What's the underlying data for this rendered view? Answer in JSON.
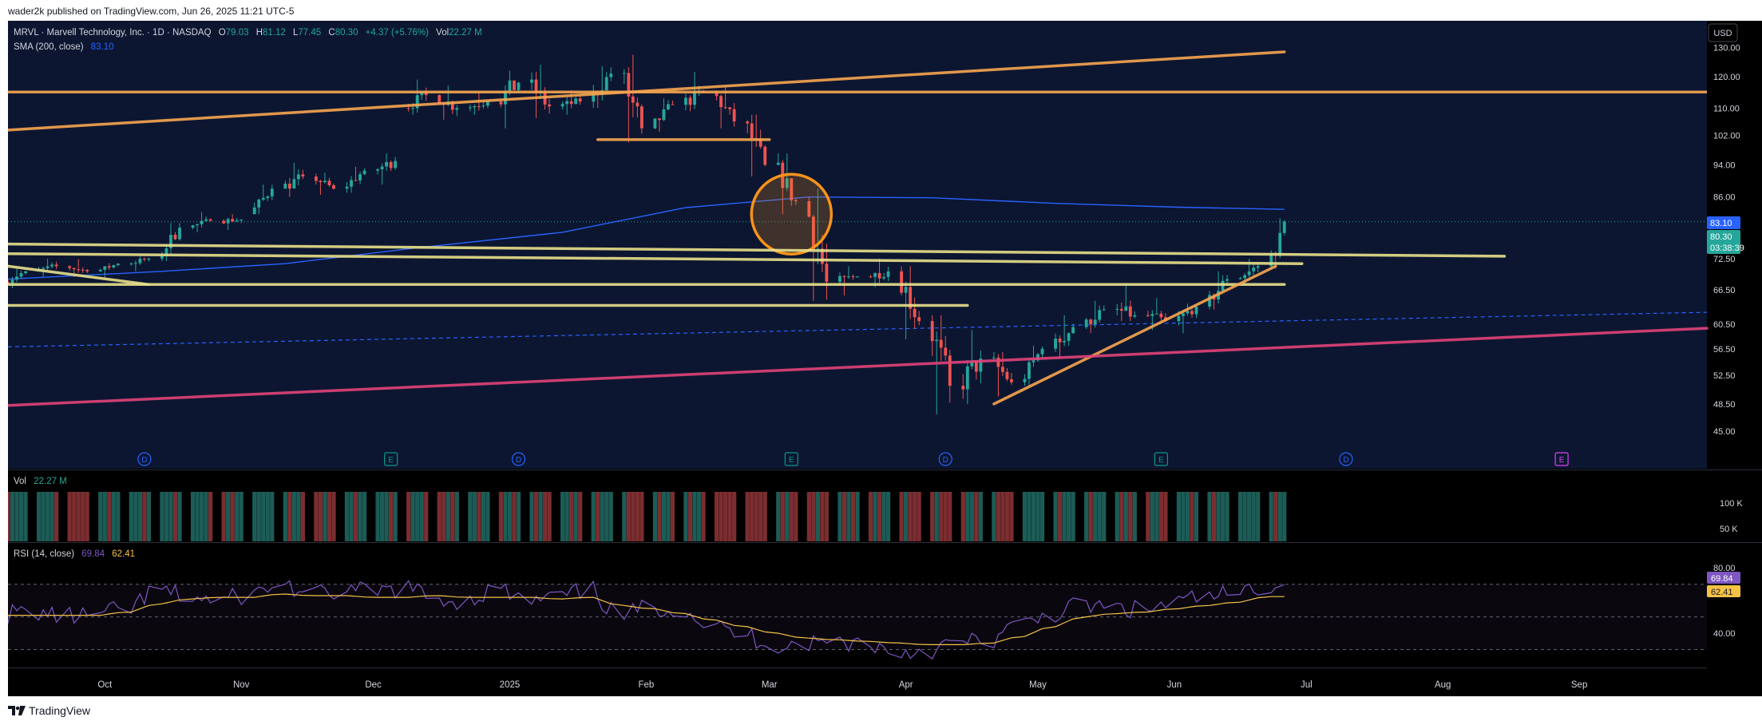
{
  "header": {
    "published": "wader2k published on TradingView.com, Jun 26, 2025 11:21 UTC-5"
  },
  "legend": {
    "symbol": "MRVL · Marvell Technology, Inc. · 1D · NASDAQ",
    "o_label": "O",
    "o_value": "79.03",
    "h_label": "H",
    "h_value": "81.12",
    "l_label": "L",
    "l_value": "77.45",
    "c_label": "C",
    "c_value": "80.30",
    "change": "+4.37 (+5.76%)",
    "vol_label": "Vol",
    "vol_value": "22.27 M",
    "sma_label": "SMA (200, close)",
    "sma_value": "83.10"
  },
  "currency": "USD",
  "price_axis": [
    "130.00",
    "120.00",
    "110.00",
    "102.00",
    "94.00",
    "86.00",
    "72.50",
    "66.50",
    "60.50",
    "56.50",
    "52.50",
    "48.50",
    "45.00"
  ],
  "price_tags": {
    "sma": "83.10",
    "last": "80.30",
    "countdown": "03:38:39"
  },
  "events": [
    {
      "letter": "D",
      "color": "#2962ff"
    },
    {
      "letter": "E",
      "color": "#089981"
    },
    {
      "letter": "D",
      "color": "#2962ff"
    },
    {
      "letter": "E",
      "color": "#089981"
    },
    {
      "letter": "D",
      "color": "#2962ff"
    },
    {
      "letter": "E",
      "color": "#089981"
    },
    {
      "letter": "D",
      "color": "#2962ff"
    },
    {
      "letter": "E",
      "color": "#e040fb"
    }
  ],
  "volume_pane": {
    "label": "Vol",
    "value": "22.27 M",
    "axis": [
      "100 K",
      "50 K"
    ]
  },
  "rsi_pane": {
    "label": "RSI (14, close)",
    "rsi_value": "69.84",
    "ma_value": "62.41",
    "axis": [
      "80.00",
      "40.00"
    ],
    "tags": [
      "69.84",
      "62.41"
    ]
  },
  "time_axis": [
    "Oct",
    "Nov",
    "Dec",
    "2025",
    "Feb",
    "Mar",
    "Apr",
    "May",
    "Jun",
    "Jul",
    "Aug",
    "Sep"
  ],
  "footer": {
    "brand": "TradingView"
  },
  "colors": {
    "up": "#26a69a",
    "down": "#ef5350",
    "background": "#0c1631",
    "sma": "#2962ff",
    "rsi": "#7e57c2",
    "rsi_ma": "#f5c246",
    "trend_orange": "#f7a64f",
    "trend_yellow": "#e8e08a",
    "trend_pink": "#e2437a",
    "circle": "#f7931a"
  },
  "chart_data": {
    "type": "candlestick",
    "symbol": "MRVL",
    "interval": "1D",
    "x_range": [
      "2024-09-09",
      "2025-09-30"
    ],
    "ylim": [
      42,
      134
    ],
    "grid": false,
    "price_scale": "log",
    "ohlc_weekly_approx": [
      {
        "date": "2024-09-09",
        "o": 68.0,
        "h": 70.5,
        "l": 66.8,
        "c": 70.0
      },
      {
        "date": "2024-09-16",
        "o": 70.0,
        "h": 72.5,
        "l": 69.0,
        "c": 71.0
      },
      {
        "date": "2024-09-23",
        "o": 71.0,
        "h": 72.4,
        "l": 68.9,
        "c": 70.0
      },
      {
        "date": "2024-09-30",
        "o": 70.0,
        "h": 71.6,
        "l": 68.8,
        "c": 71.5
      },
      {
        "date": "2024-10-07",
        "o": 71.5,
        "h": 73.0,
        "l": 70.0,
        "c": 72.5
      },
      {
        "date": "2024-10-14",
        "o": 72.5,
        "h": 80.0,
        "l": 72.0,
        "c": 79.0
      },
      {
        "date": "2024-10-21",
        "o": 79.0,
        "h": 82.5,
        "l": 78.0,
        "c": 80.5
      },
      {
        "date": "2024-10-28",
        "o": 80.5,
        "h": 82.0,
        "l": 78.5,
        "c": 80.8
      },
      {
        "date": "2024-11-04",
        "o": 82.0,
        "h": 89.0,
        "l": 82.0,
        "c": 88.0
      },
      {
        "date": "2024-11-11",
        "o": 88.0,
        "h": 94.5,
        "l": 86.0,
        "c": 91.0
      },
      {
        "date": "2024-11-18",
        "o": 91.0,
        "h": 92.0,
        "l": 86.5,
        "c": 88.0
      },
      {
        "date": "2024-11-25",
        "o": 88.0,
        "h": 93.5,
        "l": 87.0,
        "c": 92.5
      },
      {
        "date": "2024-12-02",
        "o": 92.5,
        "h": 97.0,
        "l": 89.0,
        "c": 95.0
      },
      {
        "date": "2024-12-09",
        "o": 110.0,
        "h": 119.0,
        "l": 108.0,
        "c": 114.0
      },
      {
        "date": "2024-12-16",
        "o": 114.0,
        "h": 117.0,
        "l": 106.5,
        "c": 110.0
      },
      {
        "date": "2024-12-23",
        "o": 110.0,
        "h": 115.0,
        "l": 108.0,
        "c": 112.0
      },
      {
        "date": "2024-12-30",
        "o": 112.0,
        "h": 122.0,
        "l": 104.0,
        "c": 118.0
      },
      {
        "date": "2025-01-06",
        "o": 118.0,
        "h": 124.0,
        "l": 107.0,
        "c": 110.5
      },
      {
        "date": "2025-01-13",
        "o": 110.5,
        "h": 115.5,
        "l": 108.0,
        "c": 112.0
      },
      {
        "date": "2025-01-20",
        "o": 112.0,
        "h": 123.5,
        "l": 110.0,
        "c": 121.0
      },
      {
        "date": "2025-01-27",
        "o": 121.0,
        "h": 127.5,
        "l": 100.0,
        "c": 104.0
      },
      {
        "date": "2025-02-03",
        "o": 104.0,
        "h": 113.0,
        "l": 103.0,
        "c": 111.0
      },
      {
        "date": "2025-02-10",
        "o": 111.0,
        "h": 121.5,
        "l": 109.0,
        "c": 115.0
      },
      {
        "date": "2025-02-17",
        "o": 115.0,
        "h": 117.0,
        "l": 104.0,
        "c": 106.0
      },
      {
        "date": "2025-02-24",
        "o": 106.0,
        "h": 108.0,
        "l": 91.0,
        "c": 94.0
      },
      {
        "date": "2025-03-03",
        "o": 94.0,
        "h": 97.0,
        "l": 82.0,
        "c": 85.0
      },
      {
        "date": "2025-03-10",
        "o": 85.0,
        "h": 88.0,
        "l": 64.5,
        "c": 68.0
      },
      {
        "date": "2025-03-17",
        "o": 68.0,
        "h": 71.0,
        "l": 65.5,
        "c": 69.0
      },
      {
        "date": "2025-03-24",
        "o": 69.0,
        "h": 72.5,
        "l": 67.0,
        "c": 70.0
      },
      {
        "date": "2025-03-31",
        "o": 70.0,
        "h": 71.0,
        "l": 58.0,
        "c": 61.0
      },
      {
        "date": "2025-04-07",
        "o": 61.0,
        "h": 62.0,
        "l": 47.1,
        "c": 51.0
      },
      {
        "date": "2025-04-14",
        "o": 51.0,
        "h": 59.5,
        "l": 48.5,
        "c": 55.0
      },
      {
        "date": "2025-04-21",
        "o": 55.0,
        "h": 56.0,
        "l": 49.5,
        "c": 51.5
      },
      {
        "date": "2025-04-28",
        "o": 51.5,
        "h": 57.0,
        "l": 51.0,
        "c": 56.5
      },
      {
        "date": "2025-05-05",
        "o": 56.5,
        "h": 62.0,
        "l": 55.0,
        "c": 60.0
      },
      {
        "date": "2025-05-12",
        "o": 60.0,
        "h": 64.5,
        "l": 59.0,
        "c": 63.0
      },
      {
        "date": "2025-05-19",
        "o": 63.0,
        "h": 67.5,
        "l": 61.0,
        "c": 62.0
      },
      {
        "date": "2025-05-26",
        "o": 62.0,
        "h": 65.0,
        "l": 59.5,
        "c": 61.0
      },
      {
        "date": "2025-06-02",
        "o": 61.0,
        "h": 64.0,
        "l": 59.0,
        "c": 63.5
      },
      {
        "date": "2025-06-09",
        "o": 63.5,
        "h": 70.0,
        "l": 63.0,
        "c": 68.5
      },
      {
        "date": "2025-06-16",
        "o": 68.5,
        "h": 72.5,
        "l": 67.5,
        "c": 71.0
      },
      {
        "date": "2025-06-23",
        "o": 71.0,
        "h": 81.12,
        "l": 70.5,
        "c": 80.3
      }
    ],
    "sma200_approx": [
      {
        "date": "2024-09-09",
        "v": 68.5
      },
      {
        "date": "2024-10-14",
        "v": 70.0
      },
      {
        "date": "2024-11-11",
        "v": 71.5
      },
      {
        "date": "2024-12-09",
        "v": 74.5
      },
      {
        "date": "2025-01-13",
        "v": 78.0
      },
      {
        "date": "2025-02-10",
        "v": 83.5
      },
      {
        "date": "2025-03-10",
        "v": 86.0
      },
      {
        "date": "2025-04-07",
        "v": 85.8
      },
      {
        "date": "2025-05-05",
        "v": 84.5
      },
      {
        "date": "2025-06-02",
        "v": 83.6
      },
      {
        "date": "2025-06-26",
        "v": 83.1
      }
    ],
    "volume_note": "daily volume bars, last value 22.27 M",
    "rsi": {
      "period": 14,
      "last": 69.84,
      "ma_last": 62.41,
      "weekly_approx": [
        52,
        53,
        50,
        51,
        55,
        66,
        62,
        60,
        64,
        70,
        63,
        66,
        65,
        68,
        61,
        60,
        67,
        59,
        62,
        66,
        50,
        56,
        55,
        44,
        39,
        33,
        34,
        35,
        34,
        28,
        30,
        34,
        36,
        45,
        52,
        57,
        55,
        54,
        59,
        62,
        64,
        69.84
      ],
      "ma_weekly_approx": [
        51,
        51,
        51,
        51,
        53,
        58,
        61,
        62,
        62,
        64,
        63,
        63,
        62,
        62,
        63,
        62,
        62,
        62,
        61,
        62,
        57,
        55,
        52,
        48,
        44,
        40,
        37,
        36,
        35,
        34,
        33,
        33,
        34,
        38,
        44,
        50,
        52,
        53,
        55,
        57,
        59,
        62.41
      ],
      "bands": [
        30,
        50,
        70
      ],
      "ylim": [
        20,
        85
      ]
    },
    "drawings": [
      {
        "type": "trend_line",
        "color": "orange",
        "from": {
          "date": "2024-09-09",
          "price": 103.5
        },
        "to": {
          "date": "2025-06-26",
          "price": 128.5
        }
      },
      {
        "type": "horizontal_ray",
        "color": "orange",
        "price": 115.0
      },
      {
        "type": "segment",
        "color": "orange",
        "from": {
          "date": "2025-01-21",
          "price": 100.8
        },
        "to": {
          "date": "2025-03-01",
          "price": 100.8
        }
      },
      {
        "type": "circle",
        "color": "orange",
        "center": {
          "date": "2025-03-06",
          "price": 82.0
        }
      },
      {
        "type": "trend_line",
        "color": "yellow",
        "from": {
          "date": "2024-09-09",
          "price": 75.5
        },
        "to": {
          "date": "2025-08-15",
          "price": 73.0
        }
      },
      {
        "type": "trend_line",
        "color": "yellow",
        "from": {
          "date": "2024-09-09",
          "price": 73.5
        },
        "to": {
          "date": "2025-06-30",
          "price": 71.5
        }
      },
      {
        "type": "segment",
        "color": "yellow",
        "from": {
          "date": "2024-09-09",
          "price": 71.0
        },
        "to": {
          "date": "2024-10-11",
          "price": 67.5
        }
      },
      {
        "type": "segment",
        "color": "yellow",
        "from": {
          "date": "2024-09-09",
          "price": 67.5
        },
        "to": {
          "date": "2025-06-26",
          "price": 67.5
        }
      },
      {
        "type": "segment",
        "color": "yellow",
        "from": {
          "date": "2024-09-09",
          "price": 63.7
        },
        "to": {
          "date": "2025-04-15",
          "price": 63.7
        }
      },
      {
        "type": "trend_line",
        "color": "orange",
        "from": {
          "date": "2025-04-21",
          "price": 48.5
        },
        "to": {
          "date": "2025-06-24",
          "price": 71.0
        }
      },
      {
        "type": "trend_line",
        "color": "pink",
        "from": {
          "date": "2024-09-09",
          "price": 48.3
        },
        "to": {
          "date": "2025-09-30",
          "price": 59.8
        }
      },
      {
        "type": "dashed_line",
        "color": "blue",
        "from": {
          "date": "2024-09-09",
          "price": 56.8
        },
        "to": {
          "date": "2025-09-30",
          "price": 62.5
        }
      }
    ]
  }
}
